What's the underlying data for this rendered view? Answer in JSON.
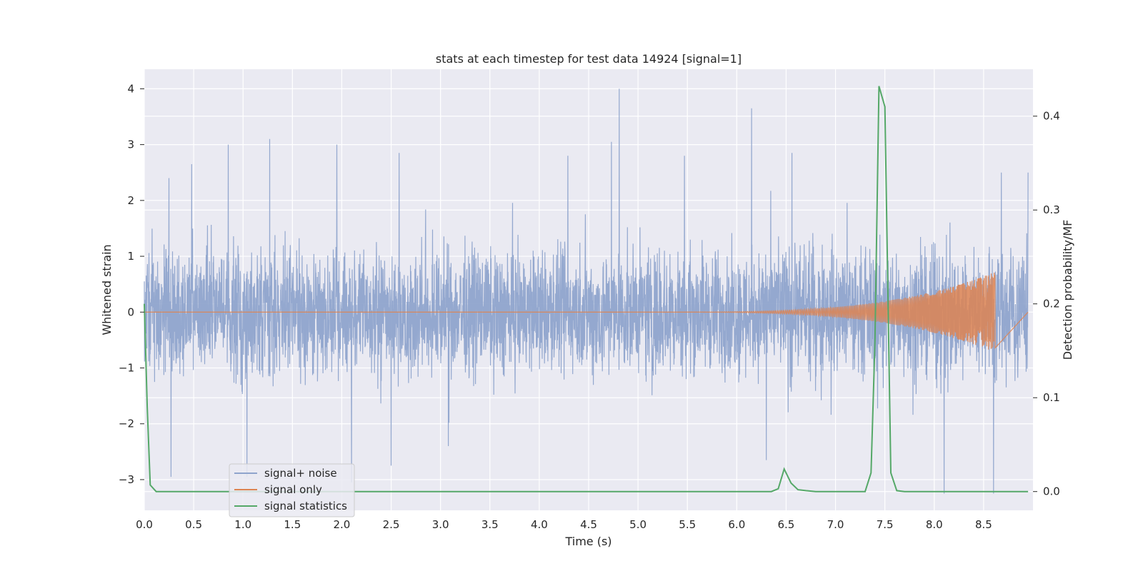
{
  "chart_data": {
    "type": "line",
    "title": "stats at each timestep for test data 14924 [signal=1]",
    "xlabel": "Time (s)",
    "ylabel": "Whitened strain",
    "ylabel_right": "Detection probability/MF",
    "xlim": [
      0.0,
      9.0
    ],
    "ylim": [
      -3.55,
      4.35
    ],
    "ylim_right": [
      -0.02,
      0.45
    ],
    "xticks": [
      "0.0",
      "0.5",
      "1.0",
      "1.5",
      "2.0",
      "2.5",
      "3.0",
      "3.5",
      "4.0",
      "4.5",
      "5.0",
      "5.5",
      "6.0",
      "6.5",
      "7.0",
      "7.5",
      "8.0",
      "8.5"
    ],
    "yticks": [
      "-3",
      "-2",
      "-1",
      "0",
      "1",
      "2",
      "3",
      "4"
    ],
    "yticks_right": [
      "0.0",
      "0.1",
      "0.2",
      "0.3",
      "0.4"
    ],
    "grid": true,
    "legend_position": "lower-left",
    "colors": {
      "noise": "#8fa4cc",
      "signal": "#dd8452",
      "stats": "#55a868",
      "background": "#eaeaf2",
      "grid": "#ffffff"
    },
    "series": [
      {
        "name": "signal+ noise",
        "description_axis": "left",
        "envelope": {
          "typical_upper": 1.7,
          "typical_lower": -1.6
        },
        "peaks": [
          {
            "x": 0.25,
            "y": 2.4
          },
          {
            "x": 0.48,
            "y": 2.65
          },
          {
            "x": 0.85,
            "y": 3.0
          },
          {
            "x": 1.27,
            "y": 3.1
          },
          {
            "x": 1.95,
            "y": 3.0
          },
          {
            "x": 2.58,
            "y": 2.85
          },
          {
            "x": 4.29,
            "y": 2.8
          },
          {
            "x": 4.73,
            "y": 3.05
          },
          {
            "x": 4.81,
            "y": 4.0
          },
          {
            "x": 5.47,
            "y": 2.8
          },
          {
            "x": 6.15,
            "y": 3.65
          },
          {
            "x": 6.56,
            "y": 2.85
          },
          {
            "x": 8.68,
            "y": 2.5
          },
          {
            "x": 8.95,
            "y": 2.5
          }
        ],
        "troughs": [
          {
            "x": 0.27,
            "y": -2.95
          },
          {
            "x": 1.04,
            "y": -2.95
          },
          {
            "x": 2.1,
            "y": -3.05
          },
          {
            "x": 2.5,
            "y": -2.75
          },
          {
            "x": 3.08,
            "y": -2.4
          },
          {
            "x": 6.3,
            "y": -2.65
          },
          {
            "x": 8.1,
            "y": -3.25
          },
          {
            "x": 8.6,
            "y": -3.25
          }
        ]
      },
      {
        "name": "signal only",
        "axis": "left",
        "chirp": {
          "start_x": 5.0,
          "merger_x": 8.62,
          "peak_amplitude": 0.72
        }
      },
      {
        "name": "signal statistics",
        "axis": "right",
        "x": [
          0.0,
          0.03,
          0.06,
          0.12,
          6.35,
          6.42,
          6.48,
          6.55,
          6.62,
          6.7,
          6.8,
          7.3,
          7.36,
          7.4,
          7.44,
          7.5,
          7.56,
          7.62,
          7.7,
          8.95
        ],
        "values": [
          0.2,
          0.09,
          0.007,
          0.0,
          0.0,
          0.003,
          0.024,
          0.009,
          0.002,
          0.001,
          0.0,
          0.0,
          0.02,
          0.16,
          0.432,
          0.41,
          0.02,
          0.001,
          0.0,
          0.0
        ]
      }
    ]
  }
}
